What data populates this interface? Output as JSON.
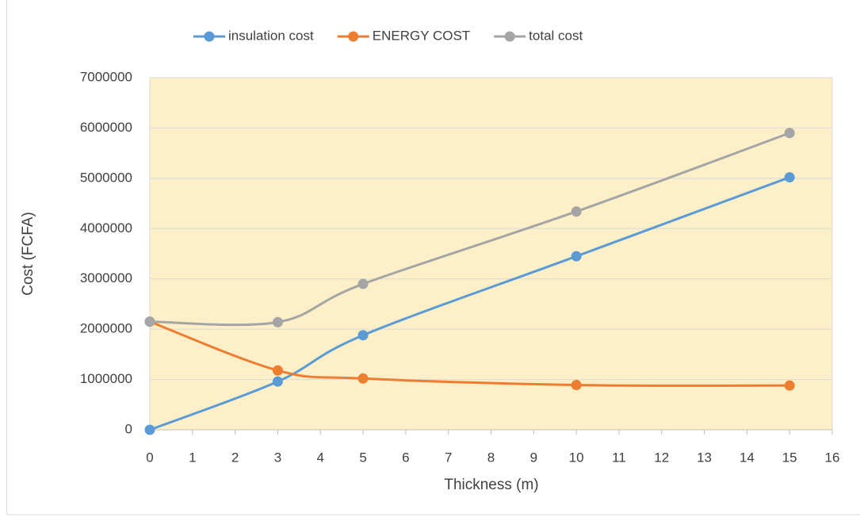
{
  "chart_data": {
    "type": "line",
    "x_label": "Thickness (m)",
    "y_label": "Cost (FCFA)",
    "x": [
      0,
      3,
      5,
      10,
      15
    ],
    "series": [
      {
        "name": "insulation cost",
        "color": "#5b9bd5",
        "values": [
          0,
          960000,
          1880000,
          3450000,
          5020000
        ]
      },
      {
        "name": "ENERGY COST",
        "color": "#ed7d31",
        "values": [
          2150000,
          1180000,
          1020000,
          890000,
          880000
        ]
      },
      {
        "name": "total cost",
        "color": "#a5a5a5",
        "values": [
          2150000,
          2140000,
          2900000,
          4340000,
          5900000
        ]
      }
    ],
    "xlim": [
      0,
      16
    ],
    "xticks": [
      0,
      1,
      2,
      3,
      4,
      5,
      6,
      7,
      8,
      9,
      10,
      11,
      12,
      13,
      14,
      15,
      16
    ],
    "ylim": [
      0,
      7000000
    ],
    "yticks": [
      0,
      1000000,
      2000000,
      3000000,
      4000000,
      5000000,
      6000000,
      7000000
    ],
    "grid": true,
    "smooth": true,
    "plot_background": "#fdf0c8",
    "legend": "top"
  }
}
